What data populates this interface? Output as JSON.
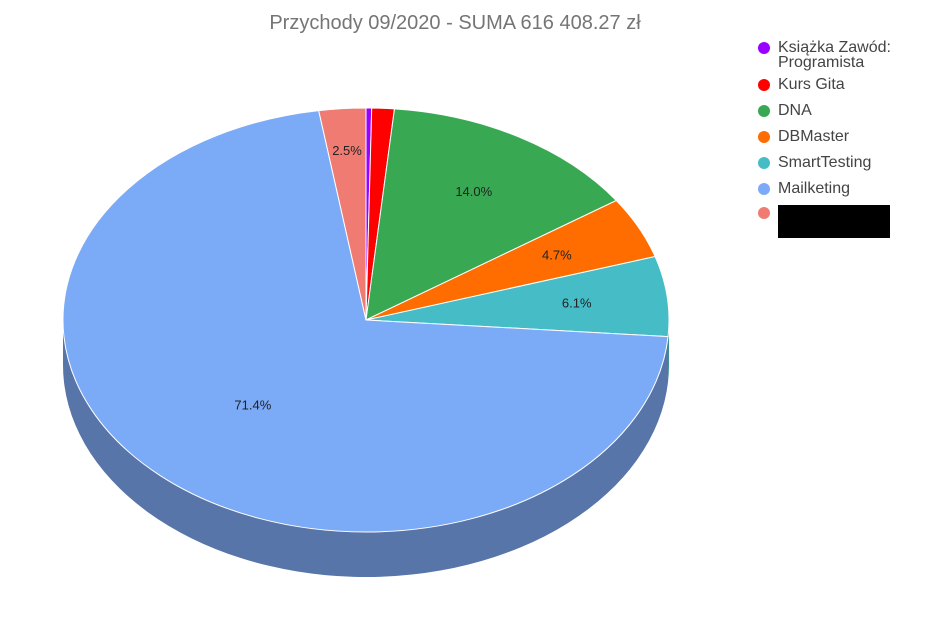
{
  "chart_data": {
    "type": "pie",
    "style": "3d",
    "title": "Przychody 09/2020 - SUMA 616 408.27 zł",
    "slices": [
      {
        "label": "Książka Zawód: Programista",
        "percent": 0.3,
        "color": "#9900ff",
        "value_label": ""
      },
      {
        "label": "Kurs Gita",
        "percent": 1.2,
        "color": "#ff0000",
        "value_label": ""
      },
      {
        "label": "DNA",
        "percent": 14.0,
        "color": "#38a853",
        "value_label": "14.0%"
      },
      {
        "label": "DBMaster",
        "percent": 4.7,
        "color": "#ff6d00",
        "value_label": "4.7%"
      },
      {
        "label": "SmartTesting",
        "percent": 6.1,
        "color": "#46bdc6",
        "value_label": "6.1%"
      },
      {
        "label": "Mailketing",
        "percent": 71.4,
        "color": "#7baaf7",
        "side_color": "#5775a8",
        "value_label": "71.4%"
      },
      {
        "label": "",
        "percent": 2.5,
        "color": "#f07b72",
        "value_label": "2.5%",
        "redacted": true
      }
    ],
    "legend_position": "right"
  }
}
